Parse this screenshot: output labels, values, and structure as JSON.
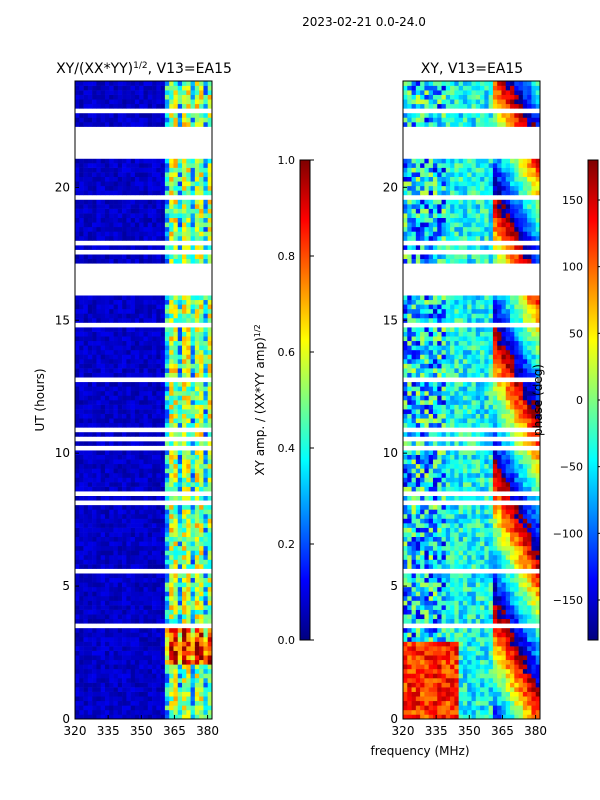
{
  "figure_title": "2023-02-21 0.0-24.0",
  "colors": {
    "jet": [
      "#00007f",
      "#0000ff",
      "#007fff",
      "#00ffff",
      "#7fff7f",
      "#ffff00",
      "#ff7f00",
      "#ff0000",
      "#7f0000"
    ],
    "missing": "#ffffff"
  },
  "chart_data": [
    {
      "type": "heatmap",
      "name": "amp",
      "title": "XY/(XX*YY)",
      "title_superscript": "1/2",
      "title_suffix": ", V13=EA15",
      "xlabel": "",
      "ylabel": "UT (hours)",
      "xlim": [
        320,
        382
      ],
      "ylim": [
        0,
        24
      ],
      "xticks": [
        320,
        335,
        350,
        365,
        380
      ],
      "yticks": [
        0,
        5,
        10,
        15,
        20
      ],
      "gaps_hours": [
        [
          16.0,
          17.1
        ],
        [
          21.3,
          22.3
        ]
      ],
      "description": "low amplitude (~0.05-0.1) below 361 MHz; strong striped amplitude (0.3-0.7) in 361-382 MHz channels",
      "colorbar": {
        "label": "XY amp. / (XX*YY amp)",
        "label_superscript": "1/2",
        "range": [
          0,
          1
        ],
        "ticks": [
          "0.0",
          "0.2",
          "0.4",
          "0.6",
          "0.8",
          "1.0"
        ]
      }
    },
    {
      "type": "heatmap",
      "name": "phase",
      "title": "XY, V13=EA15",
      "xlabel": "frequency (MHz)",
      "ylabel": "",
      "xlim": [
        320,
        382
      ],
      "ylim": [
        0,
        24
      ],
      "xticks": [
        320,
        335,
        350,
        365,
        380
      ],
      "yticks": [
        0,
        5,
        10,
        15,
        20
      ],
      "gaps_hours": [
        [
          16.0,
          17.1
        ],
        [
          21.3,
          22.3
        ]
      ],
      "description": "phase ~ -100 to 0 deg across band, noisy red/yellow patches at low frequency, wrapping phase bands above 360 MHz",
      "colorbar": {
        "label": "phase (deg)",
        "range": [
          -180,
          180
        ],
        "ticks": [
          "-150",
          "-100",
          "-50",
          "0",
          "50",
          "100",
          "150"
        ]
      }
    }
  ]
}
